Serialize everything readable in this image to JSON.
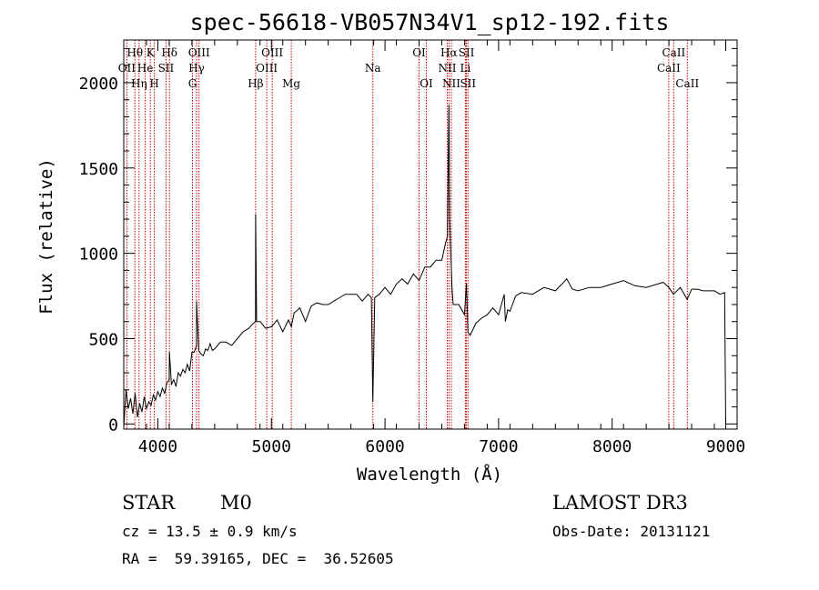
{
  "chart_data": {
    "type": "line",
    "title": "spec-56618-VB057N34V1_sp12-192.fits",
    "xlabel": "Wavelength (Å)",
    "ylabel": "Flux (relative)",
    "xlim": [
      3700,
      9100
    ],
    "ylim": [
      -30,
      2250
    ],
    "x_ticks": [
      {
        "value": 4000,
        "label": "4000"
      },
      {
        "value": 5000,
        "label": "5000"
      },
      {
        "value": 6000,
        "label": "6000"
      },
      {
        "value": 7000,
        "label": "7000"
      },
      {
        "value": 8000,
        "label": "8000"
      },
      {
        "value": 9000,
        "label": "9000"
      }
    ],
    "y_ticks": [
      {
        "value": 0,
        "label": "0"
      },
      {
        "value": 500,
        "label": "500"
      },
      {
        "value": 1000,
        "label": "1000"
      },
      {
        "value": 1500,
        "label": "1500"
      },
      {
        "value": 2000,
        "label": "2000"
      }
    ],
    "spectrum": {
      "name": "flux",
      "color": "#000000",
      "x": [
        3700,
        3720,
        3740,
        3760,
        3780,
        3800,
        3820,
        3840,
        3860,
        3880,
        3900,
        3920,
        3940,
        3960,
        3980,
        4000,
        4020,
        4040,
        4060,
        4080,
        4100,
        4102,
        4120,
        4140,
        4160,
        4180,
        4200,
        4220,
        4240,
        4260,
        4280,
        4300,
        4320,
        4340,
        4341,
        4360,
        4380,
        4400,
        4420,
        4440,
        4460,
        4480,
        4500,
        4550,
        4600,
        4650,
        4700,
        4750,
        4800,
        4840,
        4860,
        4861,
        4870,
        4900,
        4950,
        5000,
        5050,
        5100,
        5150,
        5175,
        5200,
        5250,
        5300,
        5350,
        5400,
        5450,
        5500,
        5550,
        5600,
        5650,
        5700,
        5750,
        5800,
        5850,
        5880,
        5893,
        5910,
        5950,
        6000,
        6050,
        6100,
        6150,
        6200,
        6250,
        6300,
        6350,
        6400,
        6450,
        6500,
        6530,
        6550,
        6563,
        6570,
        6590,
        6600,
        6650,
        6700,
        6717,
        6730,
        6750,
        6800,
        6850,
        6900,
        6950,
        7000,
        7050,
        7060,
        7080,
        7100,
        7150,
        7200,
        7300,
        7400,
        7500,
        7600,
        7650,
        7700,
        7800,
        7900,
        8000,
        8100,
        8200,
        8300,
        8400,
        8450,
        8500,
        8540,
        8600,
        8660,
        8700,
        8750,
        8800,
        8850,
        8900,
        8950,
        8990,
        9000
      ],
      "y": [
        -20,
        200,
        90,
        150,
        60,
        180,
        40,
        120,
        70,
        160,
        90,
        130,
        110,
        170,
        140,
        190,
        160,
        210,
        180,
        240,
        260,
        420,
        230,
        260,
        220,
        300,
        280,
        320,
        300,
        350,
        310,
        420,
        420,
        460,
        720,
        430,
        410,
        400,
        440,
        430,
        470,
        430,
        440,
        480,
        480,
        460,
        500,
        540,
        560,
        590,
        600,
        1230,
        600,
        600,
        560,
        570,
        610,
        540,
        610,
        570,
        650,
        680,
        600,
        690,
        710,
        700,
        700,
        720,
        740,
        760,
        760,
        760,
        720,
        760,
        740,
        130,
        740,
        760,
        800,
        760,
        820,
        850,
        820,
        880,
        840,
        920,
        920,
        960,
        960,
        1050,
        1100,
        1870,
        1200,
        800,
        700,
        700,
        640,
        820,
        540,
        520,
        590,
        620,
        640,
        680,
        640,
        760,
        600,
        670,
        660,
        750,
        770,
        760,
        800,
        780,
        850,
        790,
        780,
        800,
        800,
        820,
        840,
        810,
        800,
        820,
        830,
        800,
        760,
        800,
        730,
        790,
        790,
        780,
        780,
        780,
        760,
        770,
        -10
      ]
    },
    "spectral_lines": [
      {
        "label": "Hθ",
        "x": 3798,
        "row": 0
      },
      {
        "label": "OII",
        "x": 3727,
        "row": 1
      },
      {
        "label": "Hη",
        "x": 3835,
        "row": 2
      },
      {
        "label": "He",
        "x": 3889,
        "row": 1
      },
      {
        "label": "K",
        "x": 3934,
        "row": 0
      },
      {
        "label": "H",
        "x": 3969,
        "row": 2
      },
      {
        "label": "SII",
        "x": 4072,
        "row": 1
      },
      {
        "label": "Hδ",
        "x": 4102,
        "row": 0
      },
      {
        "label": "OIII",
        "x": 4363,
        "row": 0
      },
      {
        "label": "Hγ",
        "x": 4341,
        "row": 1
      },
      {
        "label": "G",
        "x": 4305,
        "row": 2
      },
      {
        "label": "Hβ",
        "x": 4861,
        "row": 2
      },
      {
        "label": "OIII",
        "x": 5007,
        "row": 0
      },
      {
        "label": "OIII",
        "x": 4959,
        "row": 1
      },
      {
        "label": "Mg",
        "x": 5175,
        "row": 2
      },
      {
        "label": "Na",
        "x": 5893,
        "row": 1
      },
      {
        "label": "OI",
        "x": 6300,
        "row": 0
      },
      {
        "label": "OI",
        "x": 6364,
        "row": 2
      },
      {
        "label": "Hα",
        "x": 6563,
        "row": 0
      },
      {
        "label": "NII",
        "x": 6548,
        "row": 1
      },
      {
        "label": "NII",
        "x": 6584,
        "row": 2
      },
      {
        "label": "SII",
        "x": 6717,
        "row": 0
      },
      {
        "label": "Li",
        "x": 6708,
        "row": 1
      },
      {
        "label": "SII",
        "x": 6731,
        "row": 2
      },
      {
        "label": "CaII",
        "x": 8542,
        "row": 0
      },
      {
        "label": "CaII",
        "x": 8498,
        "row": 1
      },
      {
        "label": "CaII",
        "x": 8662,
        "row": 2
      }
    ],
    "line_color": "#cc0000"
  },
  "info": {
    "class": "STAR",
    "subclass": "M0",
    "cz": "cz = 13.5 ± 0.9 km/s",
    "coords": "RA =  59.39165, DEC =  36.52605",
    "survey": "LAMOST DR3",
    "obs_date": "Obs-Date: 20131121"
  }
}
